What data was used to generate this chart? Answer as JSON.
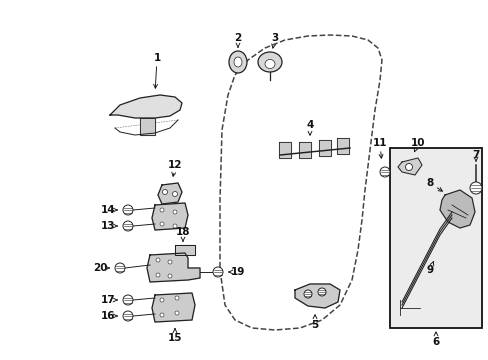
{
  "background_color": "#ffffff",
  "fig_width": 4.89,
  "fig_height": 3.6,
  "dpi": 100,
  "lc": "#222222"
}
